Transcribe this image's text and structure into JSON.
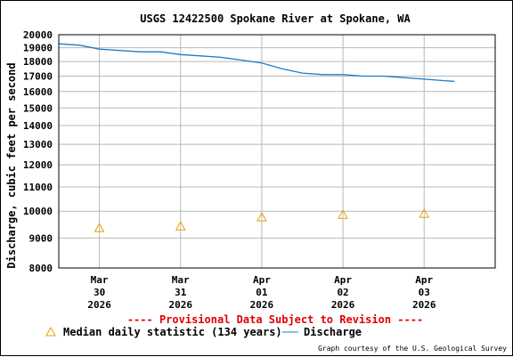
{
  "chart_data": {
    "type": "line",
    "title": "USGS 12422500 Spokane River at Spokane, WA",
    "ylabel": "Discharge, cubic feet per second",
    "xlabel": "",
    "yscale": "log",
    "ylim": [
      8000,
      20000
    ],
    "xlim": [
      "2026-03-29 12:00",
      "2026-04-03 21:00"
    ],
    "y_ticks": [
      8000,
      9000,
      10000,
      11000,
      12000,
      13000,
      14000,
      15000,
      16000,
      17000,
      18000,
      19000,
      20000
    ],
    "y_tick_labels": [
      "8000",
      "9000",
      "10000",
      "11000",
      "12000",
      "13000",
      "14000",
      "15000",
      "16000",
      "17000",
      "18000",
      "19000",
      "20000"
    ],
    "x_ticks": [
      {
        "month": "Mar",
        "day": "30",
        "year": "2026"
      },
      {
        "month": "Mar",
        "day": "31",
        "year": "2026"
      },
      {
        "month": "Apr",
        "day": "01",
        "year": "2026"
      },
      {
        "month": "Apr",
        "day": "02",
        "year": "2026"
      },
      {
        "month": "Apr",
        "day": "03",
        "year": "2026"
      }
    ],
    "grid": true,
    "series": [
      {
        "name": "Discharge",
        "color": "#1f7bc4",
        "x": [
          "2026-03-29 12:00",
          "2026-03-29 18:00",
          "2026-03-30 00:00",
          "2026-03-30 06:00",
          "2026-03-30 12:00",
          "2026-03-30 18:00",
          "2026-03-31 00:00",
          "2026-03-31 06:00",
          "2026-03-31 12:00",
          "2026-03-31 18:00",
          "2026-04-01 00:00",
          "2026-04-01 06:00",
          "2026-04-01 12:00",
          "2026-04-01 18:00",
          "2026-04-02 00:00",
          "2026-04-02 06:00",
          "2026-04-02 12:00",
          "2026-04-02 18:00",
          "2026-04-03 00:00",
          "2026-04-03 06:00",
          "2026-04-03 09:00"
        ],
        "y": [
          19300,
          19200,
          18900,
          18800,
          18700,
          18700,
          18500,
          18400,
          18300,
          18100,
          17900,
          17500,
          17200,
          17100,
          17100,
          17000,
          17000,
          16900,
          16800,
          16700,
          16650
        ]
      },
      {
        "name": "Median daily statistic (134 years)",
        "color": "#e8a000",
        "marker": "triangle",
        "x": [
          "2026-03-30 00:00",
          "2026-03-31 00:00",
          "2026-04-01 00:00",
          "2026-04-02 00:00",
          "2026-04-03 00:00"
        ],
        "y": [
          9360,
          9420,
          9760,
          9860,
          9900
        ]
      }
    ],
    "annotation": "---- Provisional Data Subject to Revision ----",
    "legend": {
      "placement": "bottom",
      "entries": [
        "Median daily statistic (134 years)",
        "Discharge"
      ]
    },
    "credit": "Graph courtesy of the U.S. Geological Survey"
  }
}
